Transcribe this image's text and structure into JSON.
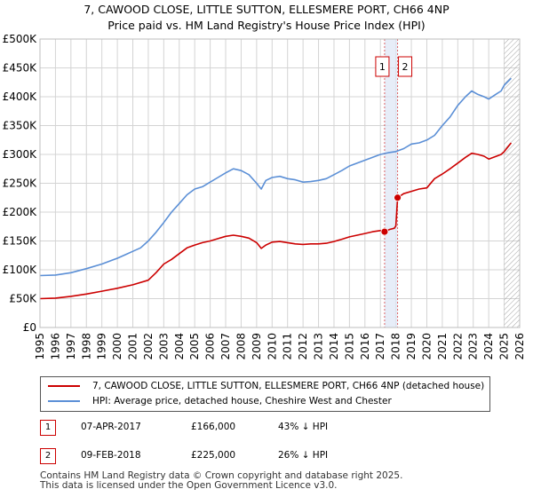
{
  "title_line1": "7, CAWOOD CLOSE, LITTLE SUTTON, ELLESMERE PORT, CH66 4NP",
  "title_line2": "Price paid vs. HM Land Registry's House Price Index (HPI)",
  "colors": {
    "property": "#cc0000",
    "hpi": "#5b8fd6",
    "marker": "#cc0000",
    "grid": "#d4d4d4",
    "band": "#dde6f5",
    "hatch": "#888888"
  },
  "chart_data": {
    "type": "line",
    "xlim": [
      1995,
      2026
    ],
    "ylim": [
      0,
      500000
    ],
    "x_ticks": [
      "1995",
      "1996",
      "1997",
      "1998",
      "1999",
      "2000",
      "2001",
      "2002",
      "2003",
      "2004",
      "2005",
      "2006",
      "2007",
      "2008",
      "2009",
      "2010",
      "2011",
      "2012",
      "2013",
      "2014",
      "2015",
      "2016",
      "2017",
      "2018",
      "2019",
      "2020",
      "2021",
      "2022",
      "2023",
      "2024",
      "2025",
      "2026"
    ],
    "y_ticks": [
      {
        "value": 0,
        "label": "£0"
      },
      {
        "value": 50000,
        "label": "£50K"
      },
      {
        "value": 100000,
        "label": "£100K"
      },
      {
        "value": 150000,
        "label": "£150K"
      },
      {
        "value": 200000,
        "label": "£200K"
      },
      {
        "value": 250000,
        "label": "£250K"
      },
      {
        "value": 300000,
        "label": "£300K"
      },
      {
        "value": 350000,
        "label": "£350K"
      },
      {
        "value": 400000,
        "label": "£400K"
      },
      {
        "value": 450000,
        "label": "£450K"
      },
      {
        "value": 500000,
        "label": "£500K"
      }
    ],
    "forecast_from": 2025.0,
    "series": [
      {
        "name": "7, CAWOOD CLOSE, LITTLE SUTTON, ELLESMERE PORT, CH66 4NP (detached house)",
        "key": "property",
        "x": [
          1995.0,
          1996.0,
          1997.0,
          1998.0,
          1999.0,
          2000.0,
          2001.0,
          2002.0,
          2002.5,
          2003.0,
          2003.5,
          2004.0,
          2004.5,
          2005.0,
          2005.5,
          2006.0,
          2006.5,
          2007.0,
          2007.5,
          2008.0,
          2008.5,
          2009.0,
          2009.3,
          2009.6,
          2010.0,
          2010.5,
          2011.0,
          2011.5,
          2012.0,
          2012.5,
          2013.0,
          2013.5,
          2014.0,
          2014.5,
          2015.0,
          2015.5,
          2016.0,
          2016.5,
          2017.0,
          2017.27,
          2017.6,
          2017.9,
          2018.0,
          2018.11,
          2018.5,
          2019.0,
          2019.5,
          2020.0,
          2020.5,
          2021.0,
          2021.5,
          2022.0,
          2022.5,
          2022.9,
          2023.3,
          2023.7,
          2024.0,
          2024.5,
          2024.8,
          2025.0,
          2025.3,
          2025.45
        ],
        "values": [
          50000,
          51000,
          54000,
          58000,
          63000,
          68000,
          74000,
          82000,
          95000,
          110000,
          118000,
          128000,
          138000,
          143000,
          147000,
          150000,
          154000,
          158000,
          160000,
          158000,
          155000,
          147000,
          137000,
          143000,
          148000,
          149000,
          147000,
          145000,
          144000,
          145000,
          145000,
          146000,
          149000,
          153000,
          157000,
          160000,
          163000,
          166000,
          168000,
          166000,
          170000,
          172000,
          176000,
          225000,
          232000,
          236000,
          240000,
          242000,
          258000,
          266000,
          275000,
          285000,
          295000,
          302000,
          300000,
          297000,
          292000,
          297000,
          300000,
          305000,
          315000,
          320000
        ]
      },
      {
        "name": "HPI: Average price, detached house, Cheshire West and Chester",
        "key": "hpi",
        "x": [
          1995.0,
          1996.0,
          1997.0,
          1998.0,
          1999.0,
          2000.0,
          2000.5,
          2001.0,
          2001.5,
          2002.0,
          2002.5,
          2003.0,
          2003.5,
          2004.0,
          2004.5,
          2005.0,
          2005.5,
          2006.0,
          2006.5,
          2007.0,
          2007.5,
          2008.0,
          2008.5,
          2009.0,
          2009.3,
          2009.6,
          2010.0,
          2010.5,
          2011.0,
          2011.5,
          2012.0,
          2012.5,
          2013.0,
          2013.5,
          2014.0,
          2014.5,
          2015.0,
          2015.5,
          2016.0,
          2016.5,
          2017.0,
          2017.5,
          2018.0,
          2018.5,
          2019.0,
          2019.5,
          2020.0,
          2020.5,
          2021.0,
          2021.5,
          2022.0,
          2022.5,
          2022.9,
          2023.3,
          2023.7,
          2024.0,
          2024.5,
          2024.8,
          2025.0,
          2025.3,
          2025.45
        ],
        "values": [
          90000,
          91000,
          95000,
          102000,
          110000,
          120000,
          126000,
          132000,
          138000,
          150000,
          165000,
          182000,
          200000,
          215000,
          230000,
          240000,
          244000,
          252000,
          260000,
          268000,
          275000,
          272000,
          265000,
          250000,
          240000,
          255000,
          260000,
          262000,
          258000,
          256000,
          252000,
          253000,
          255000,
          258000,
          265000,
          272000,
          280000,
          285000,
          290000,
          295000,
          300000,
          303000,
          305000,
          310000,
          318000,
          320000,
          325000,
          333000,
          350000,
          365000,
          385000,
          400000,
          410000,
          404000,
          400000,
          396000,
          405000,
          410000,
          420000,
          428000,
          432000
        ]
      }
    ],
    "sales": [
      {
        "id": "1",
        "x": 2017.27,
        "value": 166000
      },
      {
        "id": "2",
        "x": 2018.11,
        "value": 225000
      }
    ]
  },
  "legend": {
    "property_label": "7, CAWOOD CLOSE, LITTLE SUTTON, ELLESMERE PORT, CH66 4NP (detached house)",
    "hpi_label": "HPI: Average price, detached house, Cheshire West and Chester"
  },
  "sales_table": [
    {
      "num": "1",
      "date": "07-APR-2017",
      "price": "£166,000",
      "hpi": "43% ↓ HPI"
    },
    {
      "num": "2",
      "date": "09-FEB-2018",
      "price": "£225,000",
      "hpi": "26% ↓ HPI"
    }
  ],
  "footer": {
    "line1": "Contains HM Land Registry data © Crown copyright and database right 2025.",
    "line2": "This data is licensed under the Open Government Licence v3.0."
  }
}
